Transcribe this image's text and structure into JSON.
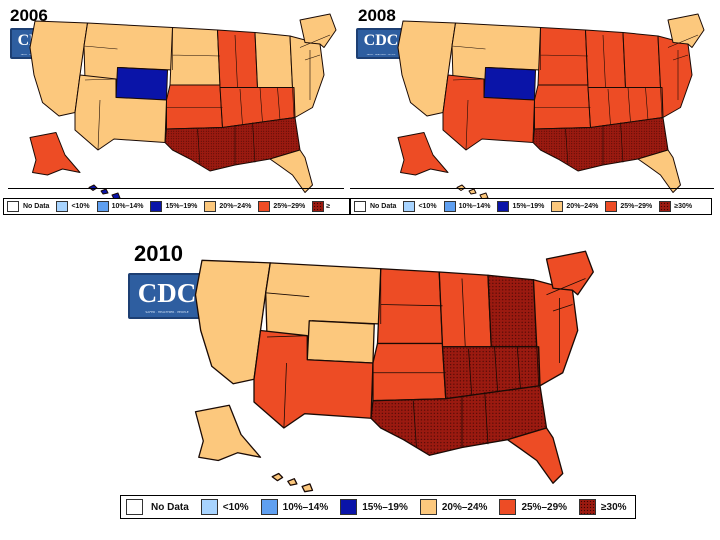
{
  "map_data": {
    "source": "CDC",
    "legend": [
      {
        "key": "nodata",
        "label": "No Data",
        "color": "#ffffff"
      },
      {
        "key": "lt10",
        "label": "<10%",
        "color": "#a8d4ff"
      },
      {
        "key": "p10",
        "label": "10%–14%",
        "color": "#5f9ff0"
      },
      {
        "key": "p15",
        "label": "15%–19%",
        "color": "#0a14a8"
      },
      {
        "key": "p20",
        "label": "20%–24%",
        "color": "#fcc87d"
      },
      {
        "key": "p25",
        "label": "25%–29%",
        "color": "#ed4c25"
      },
      {
        "key": "p30",
        "label": "≥30%",
        "color": "#9b1a10"
      }
    ],
    "legend_top": {
      "nodata": "No Data",
      "lt10": "<10%",
      "p10": "10%–14%",
      "p15": "15%–19%",
      "p20": "20%–24%",
      "p25": "25%–29%",
      "p30_cut": "≥",
      "p30": "≥30%"
    },
    "maps": [
      {
        "year": "2006",
        "logo": "CDC",
        "tagline": "SAFER · HEALTHIER · PEOPLE",
        "regions": {
          "pacific": "p20",
          "mountain_n": "p20",
          "colorado": "p15",
          "mountain_s": "p20",
          "plains_n": "p20",
          "plains_s": "p25",
          "midwest_w": "p25",
          "midwest_e": "p20",
          "south_c": "p25",
          "south_core": "p30",
          "atlantic": "p20",
          "northeast": "p20",
          "alaska": "p25",
          "hawaii": "p15",
          "florida": "p20"
        }
      },
      {
        "year": "2008",
        "logo": "CDC",
        "tagline": "SAFER · HEALTHIER · PEOPLE",
        "regions": {
          "pacific": "p20",
          "mountain_n": "p20",
          "colorado": "p15",
          "mountain_s": "p25",
          "plains_n": "p25",
          "plains_s": "p25",
          "midwest_w": "p25",
          "midwest_e": "p25",
          "south_c": "p25",
          "south_core": "p30",
          "atlantic": "p25",
          "northeast": "p20",
          "alaska": "p25",
          "hawaii": "p20",
          "florida": "p20"
        }
      },
      {
        "year": "2010",
        "logo": "CDC",
        "tagline": "SAFER · HEALTHIER · PEOPLE",
        "regions": {
          "pacific": "p20",
          "mountain_n": "p20",
          "colorado": "p20",
          "mountain_s": "p25",
          "plains_n": "p25",
          "plains_s": "p25",
          "midwest_w": "p25",
          "midwest_e": "p30",
          "south_c": "p30",
          "south_core": "p30",
          "atlantic": "p25",
          "northeast": "p25",
          "alaska": "p20",
          "hawaii": "p20",
          "florida": "p25"
        }
      }
    ]
  }
}
